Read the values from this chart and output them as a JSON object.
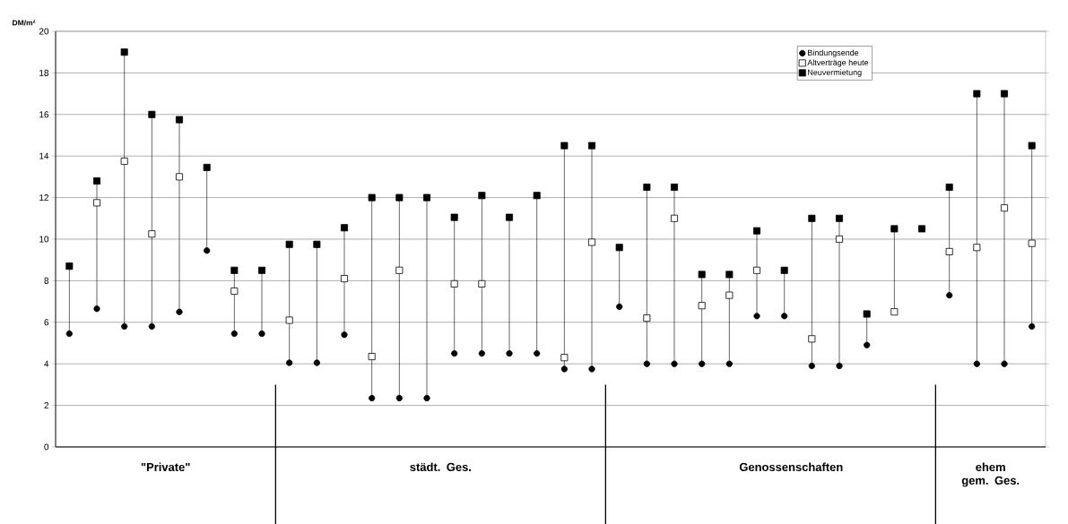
{
  "chart_data": {
    "type": "scatter",
    "ylabel": "DM/m²",
    "categories": [
      null,
      null,
      null,
      null,
      null,
      null,
      null,
      null,
      null,
      null,
      null,
      null,
      null,
      null,
      null,
      null,
      null,
      null,
      null,
      null,
      null,
      null,
      null,
      null,
      null,
      null,
      null,
      null,
      null,
      null,
      null,
      null,
      null,
      null,
      null,
      null
    ],
    "series": [
      {
        "name": "Bindungsende",
        "color": "#000000",
        "marker": "circle",
        "values": [
          5.45,
          6.65,
          5.8,
          5.8,
          6.5,
          9.45,
          5.45,
          5.45,
          4.05,
          4.05,
          5.4,
          2.35,
          2.35,
          2.35,
          4.5,
          4.5,
          4.5,
          4.5,
          3.75,
          3.75,
          6.75,
          4.0,
          4.0,
          4.0,
          4.0,
          6.3,
          6.3,
          3.9,
          3.9,
          4.9,
          null,
          null,
          7.3,
          4.0,
          4.0,
          5.8
        ]
      },
      {
        "name": "Altverträge heute",
        "color": "#ffffff",
        "marker": "square",
        "values": [
          null,
          11.75,
          13.75,
          10.25,
          13.0,
          null,
          7.5,
          null,
          6.1,
          null,
          8.1,
          4.35,
          8.5,
          null,
          7.85,
          7.85,
          null,
          null,
          4.3,
          9.85,
          null,
          6.2,
          11.0,
          6.8,
          7.3,
          8.5,
          null,
          5.2,
          10.0,
          null,
          6.5,
          null,
          9.4,
          9.6,
          11.5,
          9.8
        ]
      },
      {
        "name": "Neuvermietung",
        "color": "#000000",
        "marker": "square",
        "values": [
          8.7,
          12.8,
          19.0,
          16.0,
          15.75,
          13.45,
          8.5,
          8.5,
          9.75,
          9.75,
          10.55,
          12.0,
          12.0,
          12.0,
          11.05,
          12.1,
          11.05,
          12.1,
          14.5,
          14.5,
          9.6,
          12.5,
          12.5,
          8.3,
          8.3,
          10.4,
          8.5,
          11.0,
          11.0,
          6.4,
          10.5,
          10.5,
          12.5,
          17.0,
          17.0,
          14.5
        ]
      }
    ],
    "ylim": [
      0,
      20
    ],
    "yticks": [
      0,
      2,
      4,
      6,
      8,
      10,
      12,
      14,
      16,
      18,
      20
    ],
    "grid": "y",
    "legend": "top right",
    "annotations": [
      "\"Private\"",
      "städt. Ges.",
      "Genossenschaften",
      "ehem gem. Ges."
    ]
  }
}
